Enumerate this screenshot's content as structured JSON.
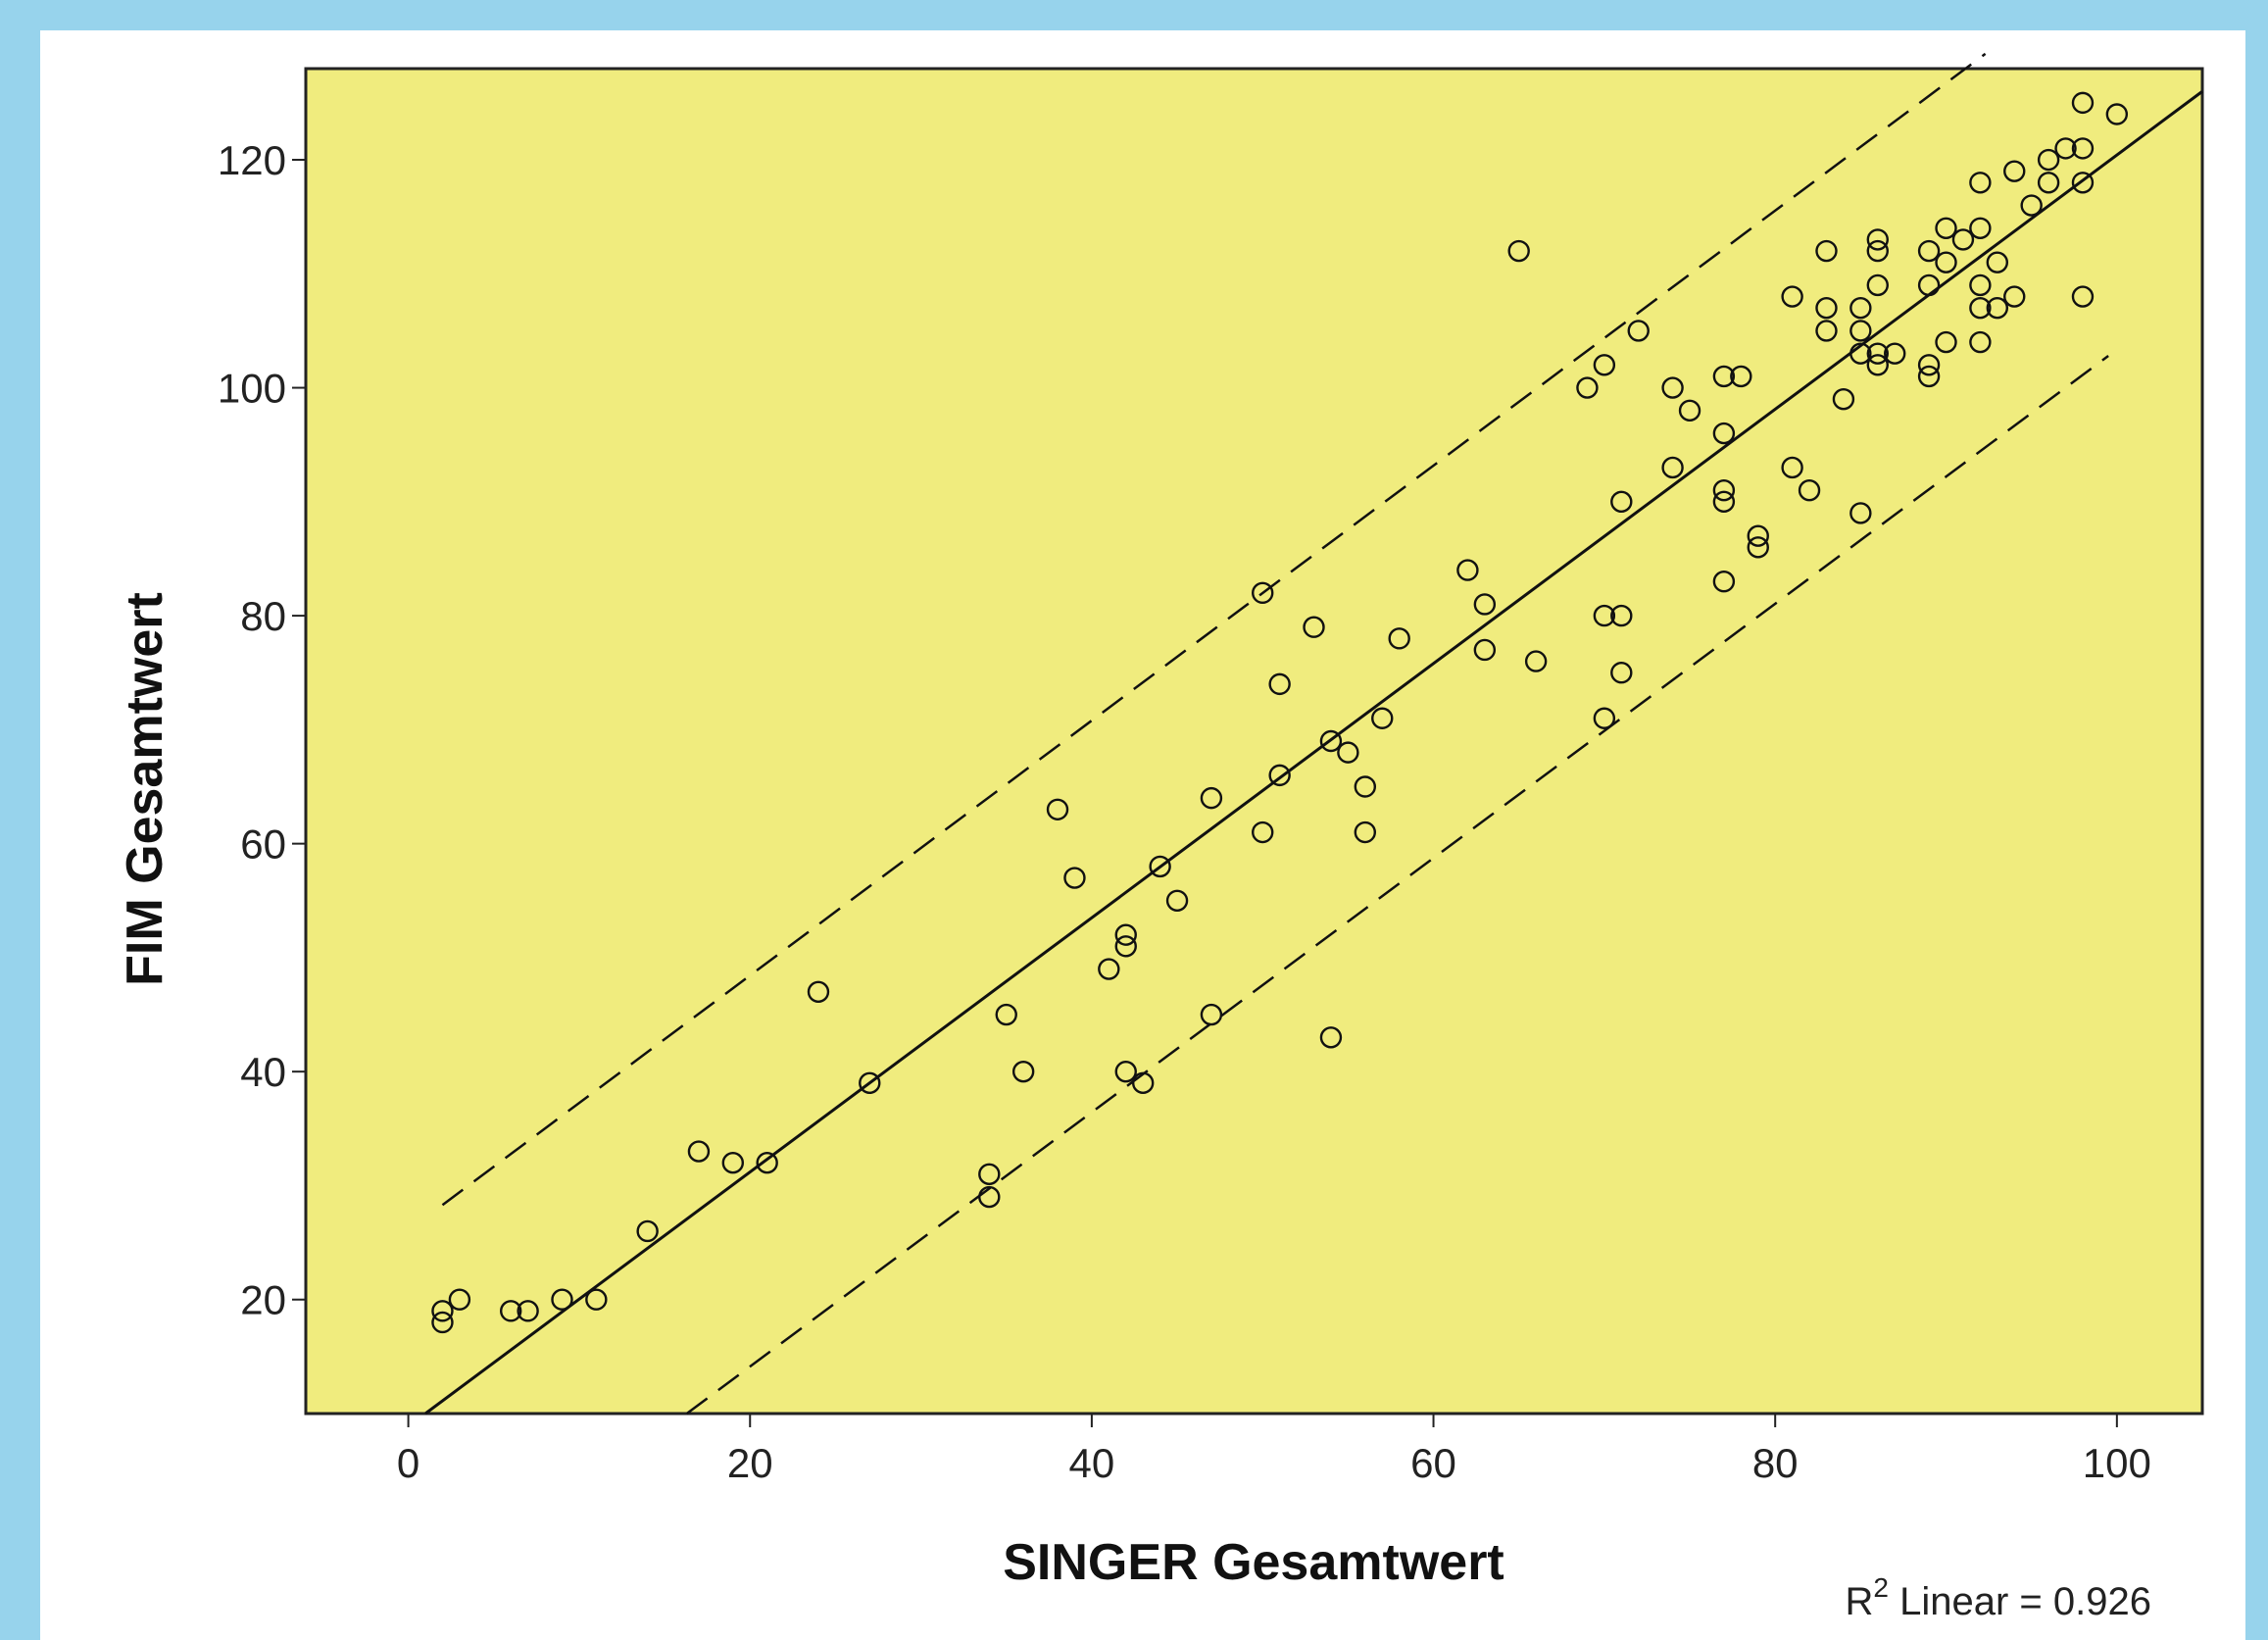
{
  "chart_data": {
    "type": "scatter",
    "xlabel": "SINGER Gesamtwert",
    "ylabel": "FIM Gesamtwert",
    "xlim": [
      -6,
      105
    ],
    "ylim": [
      10,
      128
    ],
    "x_ticks": [
      0,
      20,
      40,
      60,
      80,
      100
    ],
    "y_ticks": [
      20,
      40,
      60,
      80,
      100,
      120
    ],
    "grid": false,
    "background_color": "#f0ec7e",
    "annotation": {
      "prefix": "R",
      "superscript": "2",
      "text": " Linear = 0.926"
    },
    "fit_line": {
      "x": [
        1,
        105
      ],
      "y": [
        10,
        126
      ]
    },
    "upper_band": {
      "x": [
        2,
        92.3
      ],
      "y": [
        28.3,
        129.3
      ]
    },
    "lower_band": {
      "x": [
        16.3,
        99.5
      ],
      "y": [
        10,
        102.8
      ]
    },
    "points": [
      [
        2,
        18
      ],
      [
        2,
        19
      ],
      [
        3,
        20
      ],
      [
        6,
        19
      ],
      [
        7,
        19
      ],
      [
        9,
        20
      ],
      [
        11,
        20
      ],
      [
        14,
        26
      ],
      [
        17,
        33
      ],
      [
        19,
        32
      ],
      [
        21,
        32
      ],
      [
        24,
        47
      ],
      [
        27,
        39
      ],
      [
        34,
        29
      ],
      [
        34,
        31
      ],
      [
        35,
        45
      ],
      [
        36,
        40
      ],
      [
        38,
        63
      ],
      [
        39,
        57
      ],
      [
        41,
        49
      ],
      [
        42,
        40
      ],
      [
        42,
        51
      ],
      [
        42,
        52
      ],
      [
        43,
        39
      ],
      [
        44,
        58
      ],
      [
        45,
        55
      ],
      [
        47,
        45
      ],
      [
        47,
        64
      ],
      [
        50,
        61
      ],
      [
        50,
        82
      ],
      [
        51,
        66
      ],
      [
        51,
        74
      ],
      [
        53,
        79
      ],
      [
        54,
        43
      ],
      [
        54,
        69
      ],
      [
        55,
        68
      ],
      [
        56,
        61
      ],
      [
        56,
        65
      ],
      [
        57,
        71
      ],
      [
        58,
        78
      ],
      [
        62,
        84
      ],
      [
        63,
        77
      ],
      [
        63,
        81
      ],
      [
        65,
        112
      ],
      [
        66,
        76
      ],
      [
        69,
        100
      ],
      [
        70,
        71
      ],
      [
        70,
        80
      ],
      [
        70,
        102
      ],
      [
        71,
        75
      ],
      [
        71,
        80
      ],
      [
        71,
        90
      ],
      [
        72,
        105
      ],
      [
        74,
        93
      ],
      [
        74,
        100
      ],
      [
        75,
        98
      ],
      [
        77,
        83
      ],
      [
        77,
        90
      ],
      [
        77,
        91
      ],
      [
        77,
        96
      ],
      [
        77,
        101
      ],
      [
        78,
        101
      ],
      [
        79,
        86
      ],
      [
        79,
        87
      ],
      [
        81,
        93
      ],
      [
        81,
        108
      ],
      [
        82,
        91
      ],
      [
        83,
        105
      ],
      [
        83,
        107
      ],
      [
        83,
        112
      ],
      [
        84,
        99
      ],
      [
        85,
        89
      ],
      [
        85,
        103
      ],
      [
        85,
        105
      ],
      [
        85,
        107
      ],
      [
        86,
        102
      ],
      [
        86,
        103
      ],
      [
        86,
        109
      ],
      [
        86,
        112
      ],
      [
        86,
        113
      ],
      [
        87,
        103
      ],
      [
        89,
        101
      ],
      [
        89,
        102
      ],
      [
        89,
        109
      ],
      [
        89,
        112
      ],
      [
        90,
        104
      ],
      [
        90,
        111
      ],
      [
        90,
        114
      ],
      [
        91,
        113
      ],
      [
        92,
        104
      ],
      [
        92,
        107
      ],
      [
        92,
        109
      ],
      [
        92,
        114
      ],
      [
        92,
        118
      ],
      [
        93,
        107
      ],
      [
        93,
        111
      ],
      [
        94,
        108
      ],
      [
        94,
        119
      ],
      [
        95,
        116
      ],
      [
        96,
        118
      ],
      [
        96,
        120
      ],
      [
        97,
        121
      ],
      [
        98,
        108
      ],
      [
        98,
        118
      ],
      [
        98,
        121
      ],
      [
        98,
        125
      ],
      [
        100,
        124
      ]
    ]
  }
}
